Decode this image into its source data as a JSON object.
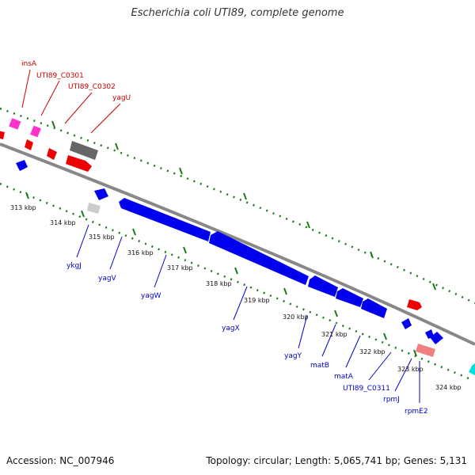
{
  "title": "Escherichia coli UTI89, complete genome",
  "footer": {
    "accession": "Accession: NC_007946",
    "summary": "Topology: circular; Length: 5,065,741 bp; Genes: 5,131"
  },
  "colors": {
    "forward_label": "#cc0000",
    "reverse_label": "#0000cc",
    "backbone": "#888888",
    "tick": "#1a7a1a"
  },
  "ticks": [
    "313 kbp",
    "314 kbp",
    "315 kbp",
    "316 kbp",
    "317 kbp",
    "318 kbp",
    "319 kbp",
    "320 kbp",
    "321 kbp",
    "322 kbp",
    "323 kbp",
    "324 kbp"
  ],
  "top_labels": [
    "insA",
    "UTI89_C0301",
    "UTI89_C0302",
    "yagU"
  ],
  "bottom_labels": [
    "ykgJ",
    "yagV",
    "yagW",
    "yagX",
    "yagY",
    "matB",
    "matA",
    "UTI89_C0311",
    "rpmJ",
    "rpmE2"
  ]
}
